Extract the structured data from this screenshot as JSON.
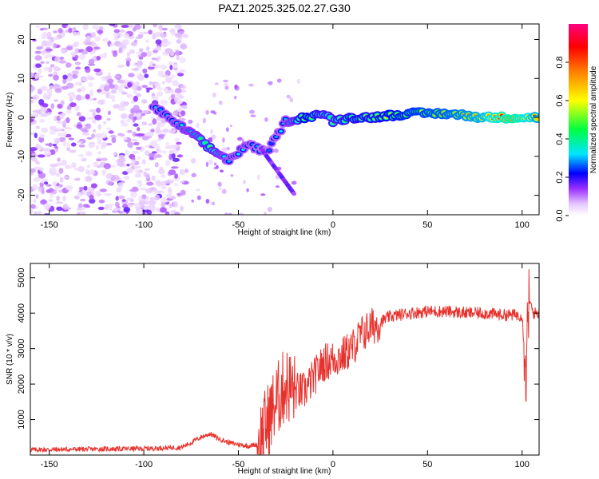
{
  "title": "PAZ1.2025.325.02.27.G30",
  "chart_data": [
    {
      "type": "heatmap",
      "name": "spectrogram",
      "xlabel": "Height of straight line (km)",
      "ylabel": "Frequency (Hz)",
      "xlim": [
        -160,
        109
      ],
      "ylim": [
        -25,
        24
      ],
      "xticks": [
        -150,
        -100,
        -50,
        0,
        50,
        100
      ],
      "yticks": [
        -20,
        -10,
        0,
        10,
        20
      ],
      "colorbar": {
        "label": "Normalized spectral amplitude",
        "range": [
          0,
          1
        ],
        "ticks": [
          0.0,
          0.2,
          0.4,
          0.6,
          0.8
        ],
        "colors": [
          "#ffffff",
          "#e6c8ff",
          "#9b30ff",
          "#0000ff",
          "#00e5ff",
          "#00ff40",
          "#ffff00",
          "#ff8000",
          "#ff0000",
          "#ff0080"
        ]
      },
      "ridge": [
        {
          "x": -95,
          "y": 3,
          "amp": 0.3
        },
        {
          "x": -85,
          "y": -1,
          "amp": 0.3
        },
        {
          "x": -75,
          "y": -4,
          "amp": 0.35
        },
        {
          "x": -65,
          "y": -8,
          "amp": 0.45
        },
        {
          "x": -55,
          "y": -11,
          "amp": 0.3
        },
        {
          "x": -45,
          "y": -7,
          "amp": 0.3
        },
        {
          "x": -35,
          "y": -9,
          "amp": 0.25
        },
        {
          "x": -25,
          "y": -1,
          "amp": 0.3
        },
        {
          "x": -15,
          "y": 0,
          "amp": 0.55
        },
        {
          "x": -5,
          "y": 1,
          "amp": 0.45
        },
        {
          "x": 0,
          "y": -1,
          "amp": 0.45
        },
        {
          "x": 10,
          "y": 0,
          "amp": 0.5
        },
        {
          "x": 20,
          "y": 0,
          "amp": 0.5
        },
        {
          "x": 40,
          "y": 1,
          "amp": 0.6
        },
        {
          "x": 60,
          "y": 1,
          "amp": 0.65
        },
        {
          "x": 80,
          "y": 0,
          "amp": 0.75
        },
        {
          "x": 95,
          "y": 0,
          "amp": 0.95
        },
        {
          "x": 109,
          "y": 0,
          "amp": 0.7
        }
      ]
    },
    {
      "type": "line",
      "name": "snr",
      "xlabel": "Height of straight line (km)",
      "ylabel": "SNR (10 * v/v)",
      "xlim": [
        -160,
        109
      ],
      "ylim": [
        0,
        5400
      ],
      "xticks": [
        -150,
        -100,
        -50,
        0,
        50,
        100
      ],
      "yticks": [
        1000,
        2000,
        3000,
        4000,
        5000
      ],
      "color": "#e8312c",
      "x": [
        -160,
        -140,
        -120,
        -100,
        -90,
        -80,
        -75,
        -70,
        -65,
        -60,
        -55,
        -50,
        -45,
        -40,
        -35,
        -30,
        -25,
        -20,
        -15,
        -10,
        -5,
        0,
        5,
        10,
        15,
        20,
        25,
        30,
        40,
        50,
        60,
        70,
        80,
        90,
        100,
        102,
        104,
        106,
        109
      ],
      "values": [
        150,
        160,
        170,
        180,
        200,
        220,
        350,
        500,
        600,
        450,
        350,
        300,
        250,
        300,
        900,
        1500,
        2000,
        1800,
        1800,
        2200,
        2600,
        2700,
        2800,
        3000,
        3400,
        3600,
        3750,
        3900,
        4000,
        4050,
        4050,
        4000,
        4000,
        3950,
        3950,
        2400,
        4300,
        4000,
        4000
      ]
    }
  ]
}
